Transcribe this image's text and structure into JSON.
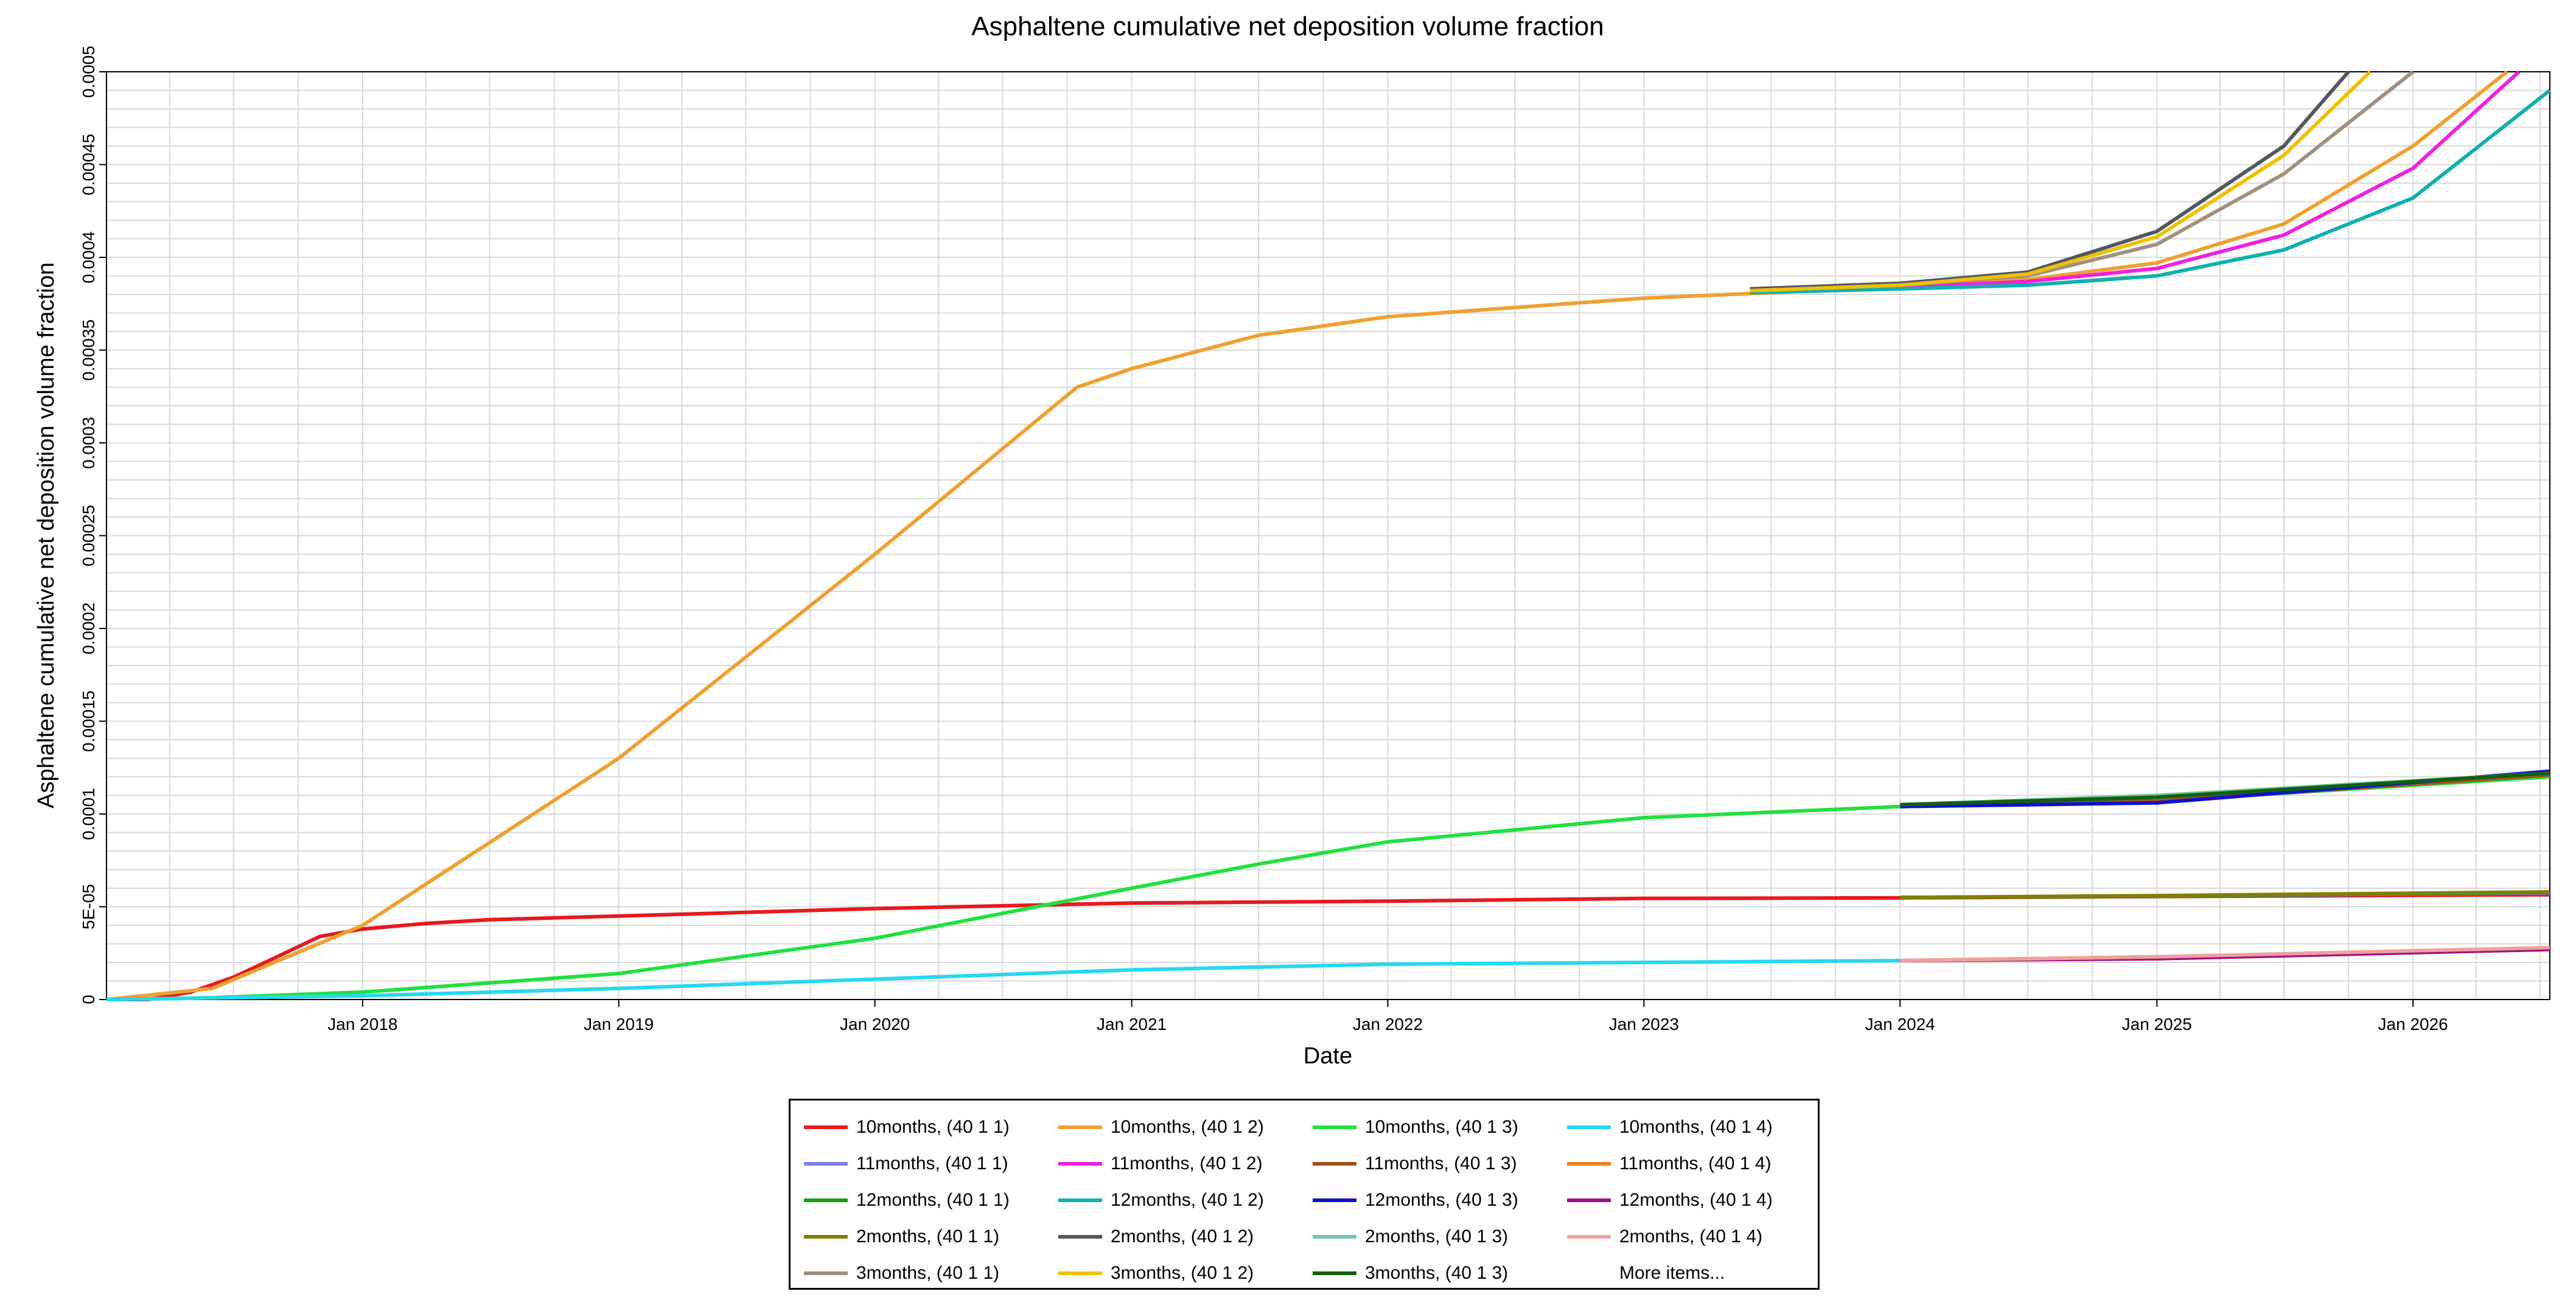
{
  "chart_data": {
    "type": "line",
    "title": "Asphaltene cumulative net deposition volume fraction",
    "xlabel": "Date",
    "ylabel": "Asphaltene cumulative net deposition volume fraction",
    "xlim": [
      "2017-01-01",
      "2026-07-15"
    ],
    "ylim": [
      0,
      0.0005
    ],
    "x_ticks": [
      "Jan 2018",
      "Jan 2019",
      "Jan 2020",
      "Jan 2021",
      "Jan 2022",
      "Jan 2023",
      "Jan 2024",
      "Jan 2025",
      "Jan 2026"
    ],
    "y_ticks": [
      "0",
      "5E-05",
      "0.0001",
      "0.00015",
      "0.0002",
      "0.00025",
      "0.0003",
      "0.00035",
      "0.0004",
      "0.00045",
      "0.0005"
    ],
    "grid": true,
    "legend_placement": "bottom",
    "more_items_label": "More items...",
    "series": [
      {
        "name": "10months, (40 1 1)",
        "color": "#e8191f",
        "x": [
          "2017-01-01",
          "2017-03-01",
          "2017-05-01",
          "2017-07-01",
          "2017-09-01",
          "2017-11-01",
          "2018-01-01",
          "2018-04-01",
          "2018-07-01",
          "2019-01-01",
          "2020-01-01",
          "2021-01-01",
          "2022-01-01",
          "2023-01-01",
          "2024-01-01",
          "2025-01-01",
          "2026-07-15"
        ],
        "y": [
          0,
          0,
          4e-06,
          1.2e-05,
          2.3e-05,
          3.4e-05,
          3.8e-05,
          4.1e-05,
          4.3e-05,
          4.5e-05,
          4.9e-05,
          5.2e-05,
          5.3e-05,
          5.45e-05,
          5.48e-05,
          5.55e-05,
          5.65e-05
        ]
      },
      {
        "name": "10months, (40 1 2)",
        "color": "#f0a030",
        "x": [
          "2017-01-01",
          "2017-06-01",
          "2018-01-01",
          "2019-01-01",
          "2020-01-01",
          "2020-10-15",
          "2021-01-01",
          "2021-07-01",
          "2022-01-01",
          "2023-01-01",
          "2024-01-01",
          "2024-07-01",
          "2025-01-01",
          "2025-07-01",
          "2026-01-01",
          "2026-05-15"
        ],
        "y": [
          0,
          6e-06,
          4e-05,
          0.00013,
          0.00024,
          0.00033,
          0.00034,
          0.000358,
          0.000368,
          0.000378,
          0.000384,
          0.000388,
          0.000397,
          0.000418,
          0.00046,
          0.0005
        ]
      },
      {
        "name": "10months, (40 1 3)",
        "color": "#22e040",
        "x": [
          "2017-01-01",
          "2017-06-01",
          "2018-01-01",
          "2019-01-01",
          "2020-01-01",
          "2021-01-01",
          "2021-07-01",
          "2022-01-01",
          "2023-01-01",
          "2024-01-01",
          "2025-01-01",
          "2026-07-15"
        ],
        "y": [
          0,
          1e-06,
          4e-06,
          1.4e-05,
          3.3e-05,
          6e-05,
          7.3e-05,
          8.5e-05,
          9.8e-05,
          0.000104,
          0.000107,
          0.00012
        ]
      },
      {
        "name": "10months, (40 1 4)",
        "color": "#28d8f0",
        "x": [
          "2017-01-01",
          "2018-01-01",
          "2019-01-01",
          "2020-01-01",
          "2021-01-01",
          "2022-01-01",
          "2023-01-01",
          "2024-01-01",
          "2025-01-01",
          "2026-07-15"
        ],
        "y": [
          0,
          2e-06,
          6e-06,
          1.1e-05,
          1.6e-05,
          1.9e-05,
          2e-05,
          2.1e-05,
          2.3e-05,
          2.7e-05
        ]
      },
      {
        "name": "11months, (40 1 1)",
        "color": "#8080e8",
        "x": [
          "2024-01-01",
          "2025-01-01",
          "2026-07-15"
        ],
        "y": [
          5.5e-05,
          5.57e-05,
          5.75e-05
        ]
      },
      {
        "name": "11months, (40 1 2)",
        "color": "#f020e0",
        "x": [
          "2023-06-01",
          "2024-01-01",
          "2024-07-01",
          "2025-01-01",
          "2025-07-01",
          "2026-01-01",
          "2026-06-01"
        ],
        "y": [
          0.000381,
          0.000384,
          0.000387,
          0.000394,
          0.000412,
          0.000448,
          0.0005
        ]
      },
      {
        "name": "11months, (40 1 3)",
        "color": "#a05020",
        "x": [
          "2024-01-01",
          "2025-01-01",
          "2026-07-15"
        ],
        "y": [
          0.000104,
          0.000107,
          0.000121
        ]
      },
      {
        "name": "11months, (40 1 4)",
        "color": "#f08020",
        "x": [
          "2024-01-01",
          "2025-01-01",
          "2026-07-15"
        ],
        "y": [
          2.1e-05,
          2.3e-05,
          2.7e-05
        ]
      },
      {
        "name": "12months, (40 1 1)",
        "color": "#10a010",
        "x": [
          "2024-01-01",
          "2025-01-01",
          "2026-07-15"
        ],
        "y": [
          5.5e-05,
          5.58e-05,
          5.78e-05
        ]
      },
      {
        "name": "12months, (40 1 2)",
        "color": "#10b0b0",
        "x": [
          "2023-06-01",
          "2024-01-01",
          "2024-07-01",
          "2025-01-01",
          "2025-07-01",
          "2026-01-01",
          "2026-07-15"
        ],
        "y": [
          0.000381,
          0.000383,
          0.000385,
          0.00039,
          0.000404,
          0.000432,
          0.00049
        ]
      },
      {
        "name": "12months, (40 1 3)",
        "color": "#1010d0",
        "x": [
          "2024-01-01",
          "2025-01-01",
          "2026-07-15"
        ],
        "y": [
          0.000104,
          0.000106,
          0.000123
        ]
      },
      {
        "name": "12months, (40 1 4)",
        "color": "#a01080",
        "x": [
          "2024-01-01",
          "2025-01-01",
          "2026-07-15"
        ],
        "y": [
          2.1e-05,
          2.2e-05,
          2.7e-05
        ]
      },
      {
        "name": "2months, (40 1 1)",
        "color": "#808000",
        "x": [
          "2024-01-01",
          "2025-01-01",
          "2026-07-15"
        ],
        "y": [
          5.5e-05,
          5.6e-05,
          5.8e-05
        ]
      },
      {
        "name": "2months, (40 1 2)",
        "color": "#505860",
        "x": [
          "2023-06-01",
          "2024-01-01",
          "2024-07-01",
          "2025-01-01",
          "2025-07-01",
          "2025-10-01"
        ],
        "y": [
          0.000383,
          0.000386,
          0.000392,
          0.000414,
          0.00046,
          0.0005
        ]
      },
      {
        "name": "2months, (40 1 3)",
        "color": "#70c8a0",
        "x": [
          "2024-01-01",
          "2025-01-01",
          "2026-07-15"
        ],
        "y": [
          0.000105,
          0.00011,
          0.000122
        ]
      },
      {
        "name": "2months, (40 1 4)",
        "color": "#f0a0a0",
        "x": [
          "2024-01-01",
          "2025-01-01",
          "2026-07-15"
        ],
        "y": [
          2.1e-05,
          2.3e-05,
          2.8e-05
        ]
      },
      {
        "name": "3months, (40 1 1)",
        "color": "#a09080",
        "x": [
          "2023-06-01",
          "2024-01-01",
          "2024-07-01",
          "2025-01-01",
          "2025-07-01",
          "2026-01-01"
        ],
        "y": [
          0.000382,
          0.000385,
          0.00039,
          0.000407,
          0.000445,
          0.0005
        ]
      },
      {
        "name": "3months, (40 1 2)",
        "color": "#f0c000",
        "x": [
          "2023-06-01",
          "2024-01-01",
          "2024-07-01",
          "2025-01-01",
          "2025-07-01",
          "2025-11-01"
        ],
        "y": [
          0.000382,
          0.000385,
          0.000391,
          0.000411,
          0.000455,
          0.0005
        ]
      },
      {
        "name": "3months, (40 1 3)",
        "color": "#106010",
        "x": [
          "2024-01-01",
          "2025-01-01",
          "2026-07-15"
        ],
        "y": [
          0.000105,
          0.000109,
          0.000122
        ]
      }
    ]
  }
}
